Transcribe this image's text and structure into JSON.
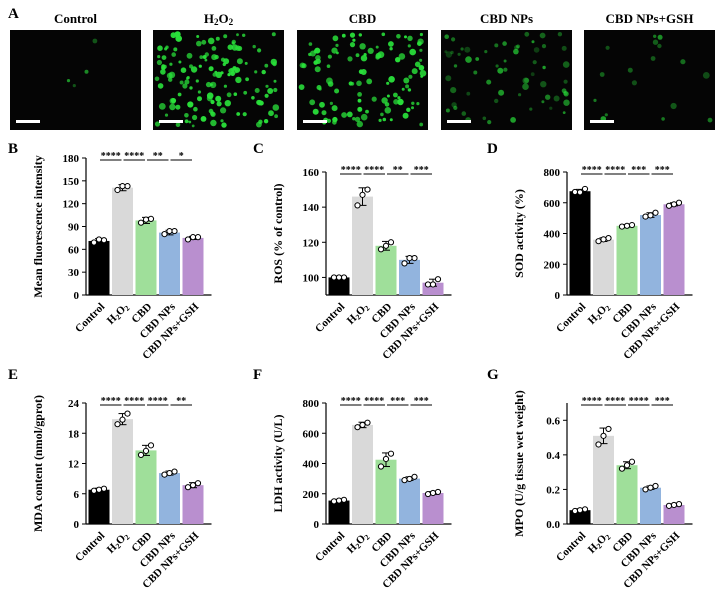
{
  "colors": {
    "bars": [
      "#000000",
      "#d9d9d9",
      "#9fdf9a",
      "#92b4de",
      "#b98fcf"
    ],
    "green_cells": "#29e03a",
    "panel_bg": "#050505"
  },
  "micrographs": {
    "panel_label": "A",
    "titles": [
      "Control",
      "H2O2",
      "CBD",
      "CBD NPs",
      "CBD NPs+GSH"
    ],
    "cell_density": [
      0.03,
      1.0,
      0.8,
      0.45,
      0.12
    ]
  },
  "chart_data": [
    {
      "type": "bar",
      "panel_label": "B",
      "categories": [
        "Control",
        "H2O2",
        "CBD",
        "CBD NPs",
        "CBD NPs+GSH"
      ],
      "values": [
        71,
        141,
        98,
        82,
        75
      ],
      "points": [
        [
          69,
          72,
          73
        ],
        [
          138,
          143,
          143
        ],
        [
          95,
          100,
          99
        ],
        [
          80,
          84,
          84
        ],
        [
          73,
          76,
          76
        ]
      ],
      "errors": [
        3,
        4,
        4,
        3,
        2
      ],
      "ylabel": "Mean fluorescence intensity",
      "ylim": [
        0,
        180
      ],
      "yticks": [
        0,
        30,
        60,
        90,
        120,
        150,
        180
      ],
      "significance": [
        "****",
        "****",
        "**",
        "*"
      ]
    },
    {
      "type": "bar",
      "panel_label": "C",
      "categories": [
        "Control",
        "H2O2",
        "CBD",
        "CBD NPs",
        "CBD NPs+GSH"
      ],
      "values": [
        100,
        146,
        118,
        110,
        97
      ],
      "points": [
        [
          100,
          100,
          100
        ],
        [
          141,
          150,
          147
        ],
        [
          116,
          120,
          118
        ],
        [
          108,
          111,
          111
        ],
        [
          96,
          99,
          96
        ]
      ],
      "errors": [
        0.5,
        5,
        2.5,
        2,
        2
      ],
      "ylabel": "ROS (% of control)",
      "ylim": [
        90,
        160
      ],
      "yticks": [
        100,
        120,
        140,
        160
      ],
      "significance": [
        "****",
        "****",
        "**",
        "***"
      ]
    },
    {
      "type": "bar",
      "panel_label": "D",
      "categories": [
        "Control",
        "H2O2",
        "CBD",
        "CBD NPs",
        "CBD NPs+GSH"
      ],
      "values": [
        675,
        360,
        450,
        520,
        590
      ],
      "points": [
        [
          670,
          690,
          668
        ],
        [
          350,
          370,
          362
        ],
        [
          445,
          455,
          450
        ],
        [
          510,
          535,
          518
        ],
        [
          580,
          600,
          590
        ]
      ],
      "errors": [
        12,
        12,
        8,
        15,
        10
      ],
      "ylabel": "SOD activity (%)",
      "ylim": [
        0,
        800
      ],
      "yticks": [
        0,
        200,
        400,
        600,
        800
      ],
      "significance": [
        "****",
        "****",
        "***",
        "***"
      ]
    },
    {
      "type": "bar",
      "panel_label": "E",
      "categories": [
        "Control",
        "H2O2",
        "CBD",
        "CBD NPs",
        "CBD NPs+GSH"
      ],
      "values": [
        6.8,
        20.8,
        14.6,
        10.1,
        7.7
      ],
      "points": [
        [
          6.6,
          7.0,
          6.8
        ],
        [
          19.8,
          21.9,
          20.7
        ],
        [
          13.7,
          15.6,
          14.5
        ],
        [
          9.8,
          10.4,
          10.1
        ],
        [
          7.3,
          8.1,
          7.7
        ]
      ],
      "errors": [
        0.3,
        1.1,
        1.0,
        0.4,
        0.5
      ],
      "ylabel": "MDA content (nmol/gprot)",
      "ylim": [
        0,
        24
      ],
      "yticks": [
        0,
        6,
        12,
        18,
        24
      ],
      "significance": [
        "****",
        "****",
        "****",
        "**"
      ]
    },
    {
      "type": "bar",
      "panel_label": "F",
      "categories": [
        "Control",
        "H2O2",
        "CBD",
        "CBD NPs",
        "CBD NPs+GSH"
      ],
      "values": [
        155,
        655,
        425,
        300,
        205
      ],
      "points": [
        [
          150,
          160,
          155
        ],
        [
          640,
          670,
          655
        ],
        [
          380,
          465,
          430
        ],
        [
          290,
          312,
          298
        ],
        [
          198,
          212,
          205
        ]
      ],
      "errors": [
        8,
        18,
        45,
        12,
        9
      ],
      "ylabel": "LDH activity (U/L)",
      "ylim": [
        0,
        800
      ],
      "yticks": [
        0,
        200,
        400,
        600,
        800
      ],
      "significance": [
        "****",
        "****",
        "***",
        "***"
      ]
    },
    {
      "type": "bar",
      "panel_label": "G",
      "categories": [
        "Control",
        "H2O2",
        "CBD",
        "CBD NPs",
        "CBD NPs+GSH"
      ],
      "values": [
        0.08,
        0.51,
        0.34,
        0.21,
        0.11
      ],
      "points": [
        [
          0.075,
          0.085,
          0.08
        ],
        [
          0.46,
          0.55,
          0.51
        ],
        [
          0.32,
          0.36,
          0.34
        ],
        [
          0.2,
          0.22,
          0.21
        ],
        [
          0.105,
          0.115,
          0.11
        ]
      ],
      "errors": [
        0.008,
        0.045,
        0.02,
        0.01,
        0.006
      ],
      "ylabel": "MPO (U/g tissue wet weight)",
      "ylim": [
        0,
        0.7
      ],
      "yticks": [
        0.0,
        0.2,
        0.4,
        0.6
      ],
      "significance": [
        "****",
        "****",
        "****",
        "***"
      ]
    }
  ]
}
